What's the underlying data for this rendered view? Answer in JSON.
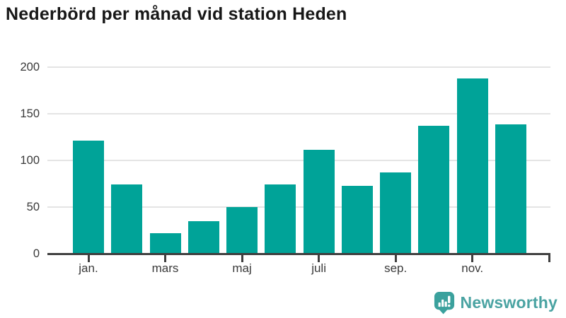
{
  "title": "Nederbörd per månad vid station Heden",
  "footer": {
    "brand": "Newsworthy"
  },
  "colors": {
    "bar": "#00a398",
    "grid": "#e4e4e4",
    "axis": "#3f3f3f",
    "tick_text": "#3a3a3a",
    "title_text": "#171717",
    "logo_icon": "#3ba19d",
    "logo_text": "#4aa3a2"
  },
  "chart_data": {
    "type": "bar",
    "title": "Nederbörd per månad vid station Heden",
    "xlabel": "",
    "ylabel": "",
    "values": [
      121,
      74,
      22,
      35,
      50,
      74,
      111,
      73,
      87,
      137,
      188,
      139
    ],
    "x_ticks": [
      {
        "index": 0,
        "label": "jan."
      },
      {
        "index": 2,
        "label": "mars"
      },
      {
        "index": 4,
        "label": "maj"
      },
      {
        "index": 6,
        "label": "juli"
      },
      {
        "index": 8,
        "label": "sep."
      },
      {
        "index": 10,
        "label": "nov."
      }
    ],
    "y_ticks": [
      0,
      50,
      100,
      150,
      200
    ],
    "ylim": [
      0,
      200
    ],
    "grid": true,
    "legend": false
  }
}
